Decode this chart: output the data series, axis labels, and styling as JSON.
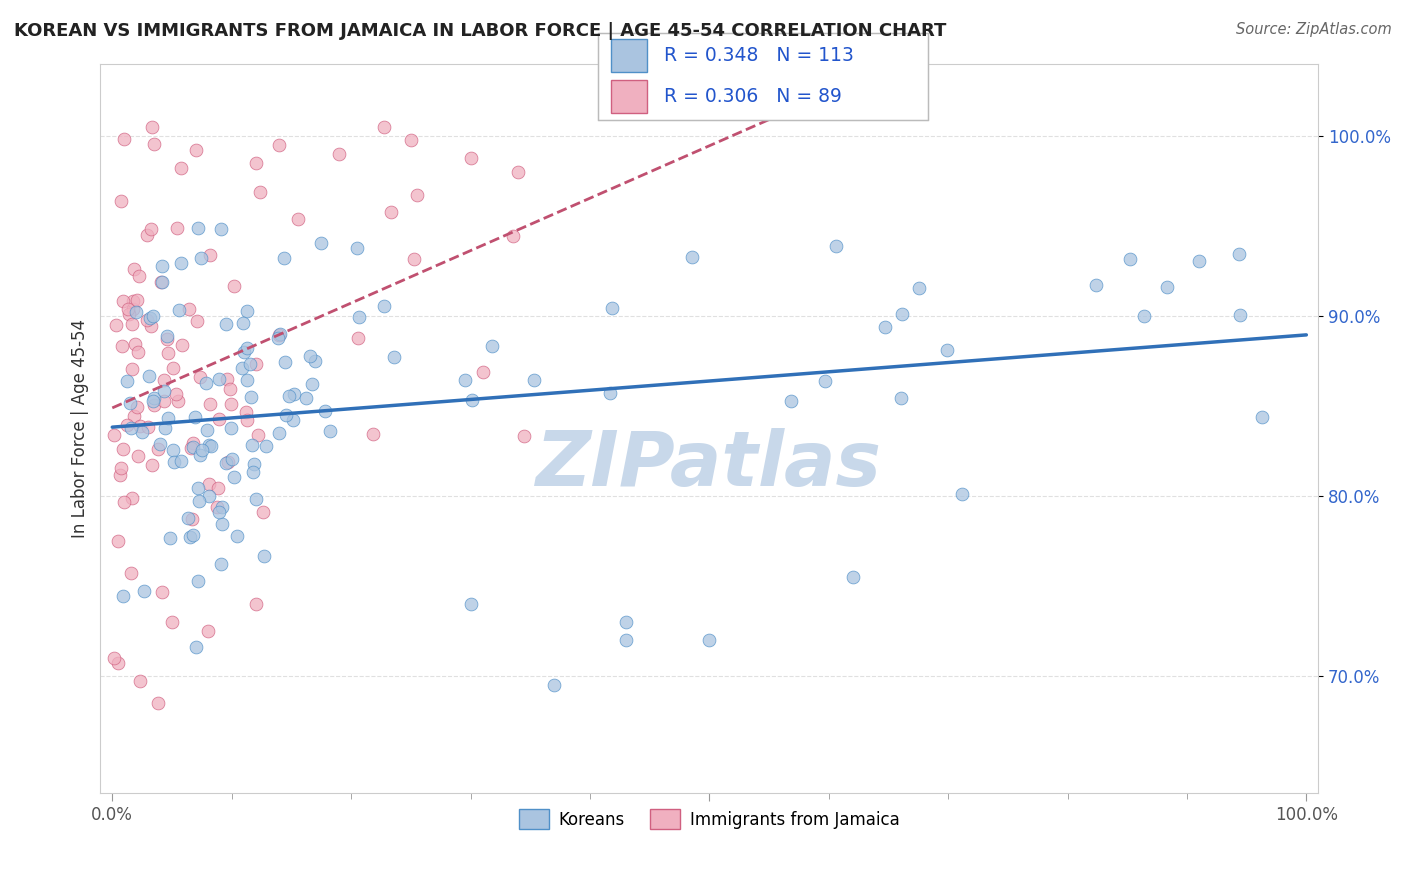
{
  "title": "KOREAN VS IMMIGRANTS FROM JAMAICA IN LABOR FORCE | AGE 45-54 CORRELATION CHART",
  "source": "Source: ZipAtlas.com",
  "ylabel": "In Labor Force | Age 45-54",
  "xlim": [
    -0.01,
    1.01
  ],
  "ylim": [
    0.635,
    1.04
  ],
  "yticks": [
    0.7,
    0.8,
    0.9,
    1.0
  ],
  "ytick_labels": [
    "70.0%",
    "80.0%",
    "90.0%",
    "100.0%"
  ],
  "korean_R": 0.348,
  "korean_N": 113,
  "jamaica_R": 0.306,
  "jamaica_N": 89,
  "korean_color": "#aac4e0",
  "korean_edge_color": "#5090c8",
  "korean_line_color": "#3070b8",
  "jamaica_color": "#f0b0c0",
  "jamaica_edge_color": "#d06080",
  "jamaica_line_color": "#c05070",
  "legend_text_color": "#2255cc",
  "watermark_color": "#c8d8ea",
  "background_color": "#ffffff",
  "grid_color": "#e0e0e0",
  "title_color": "#222222",
  "ylabel_color": "#333333",
  "ytick_color": "#3366cc",
  "scatter_size": 85,
  "scatter_alpha": 0.75
}
